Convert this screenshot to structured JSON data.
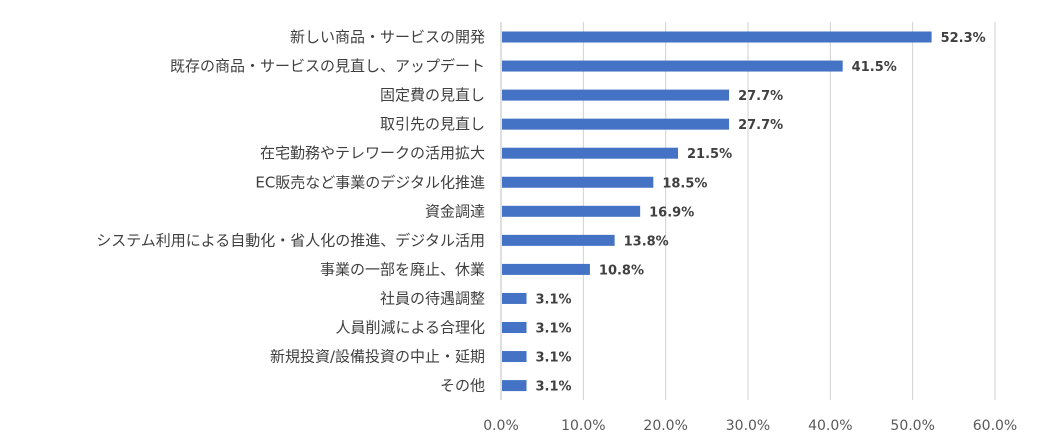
{
  "chart_data": {
    "type": "bar",
    "orientation": "horizontal",
    "categories": [
      "新しい商品・サービスの開発",
      "既存の商品・サービスの見直し、アップデート",
      "固定費の見直し",
      "取引先の見直し",
      "在宅勤務やテレワークの活用拡大",
      "EC販売など事業のデジタル化推進",
      "資金調達",
      "システム利用による自動化・省人化の推進、デジタル活用",
      "事業の一部を廃止、休業",
      "社員の待遇調整",
      "人員削減による合理化",
      "新規投資/設備投資の中止・延期",
      "その他"
    ],
    "values": [
      52.3,
      41.5,
      27.7,
      27.7,
      21.5,
      18.5,
      16.9,
      13.8,
      10.8,
      3.1,
      3.1,
      3.1,
      3.1
    ],
    "value_labels": [
      "52.3%",
      "41.5%",
      "27.7%",
      "27.7%",
      "21.5%",
      "18.5%",
      "16.9%",
      "13.8%",
      "10.8%",
      "3.1%",
      "3.1%",
      "3.1%",
      "3.1%"
    ],
    "xlim": [
      0,
      60
    ],
    "x_ticks": [
      "0.0%",
      "10.0%",
      "20.0%",
      "30.0%",
      "40.0%",
      "50.0%",
      "60.0%"
    ],
    "grid": "vertical",
    "bar_color": "#4472C4",
    "title": "",
    "xlabel": "",
    "ylabel": ""
  }
}
